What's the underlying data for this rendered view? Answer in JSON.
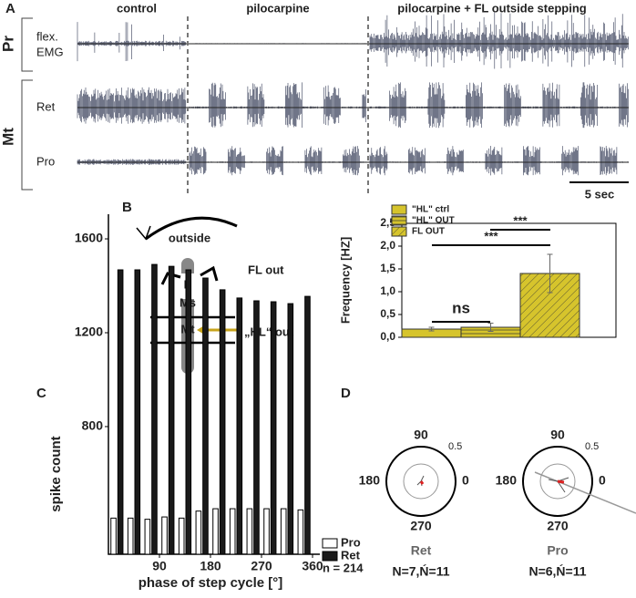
{
  "panel_labels": [
    "A",
    "B",
    "C",
    "D"
  ],
  "traces": {
    "conditions": [
      "control",
      "pilocarpine",
      "pilocarpine + FL outside stepping"
    ],
    "groups": [
      "Pr",
      "Mt"
    ],
    "channels": [
      "flex.",
      "EMG",
      "Ret",
      "Pro"
    ],
    "scale_bar": "5 sec"
  },
  "diagram": {
    "outside": "outside",
    "p": "P",
    "ms": "Ms",
    "mt": "Mt",
    "fl_out": "FL out",
    "hl_out": "„HL“ out"
  },
  "polar": {
    "angle_labels": [
      "90",
      "180",
      "0",
      "270"
    ],
    "radius_label": "0.5",
    "plots": [
      {
        "name": "Ret",
        "n": "N=7,Ń=11"
      },
      {
        "name": "Pro",
        "n": "N=6,Ń=11"
      }
    ]
  },
  "chart_data": [
    {
      "type": "bar",
      "ylabel": "Frequency [HZ]",
      "series": [
        {
          "name": "\"HL\" ctrl",
          "color": "#d6c42c",
          "hatch": "none",
          "values": [
            0.18
          ],
          "errors": [
            0.04
          ]
        },
        {
          "name": "\"HL\" OUT",
          "color": "#d6c42c",
          "hatch": "horizontal",
          "values": [
            0.22
          ],
          "errors": [
            0.09
          ]
        },
        {
          "name": "FL OUT",
          "color": "#d6c42c",
          "hatch": "diagonal",
          "values": [
            1.4
          ],
          "errors": [
            0.42
          ]
        }
      ],
      "annotations": [
        "ns",
        "***",
        "***"
      ],
      "ylim": [
        0,
        2.5
      ],
      "yticks": [
        {
          "value": 0,
          "label": "0,0"
        },
        {
          "value": 0.5,
          "label": "0,5"
        },
        {
          "value": 1,
          "label": "1,0"
        },
        {
          "value": 1.5,
          "label": "1,5"
        },
        {
          "value": 2,
          "label": "2,0"
        },
        {
          "value": 2.5,
          "label": "2,5"
        }
      ]
    },
    {
      "type": "grouped-bar",
      "xlabel": "phase of step cycle [°]",
      "ylabel": "spike count",
      "note": "n = 214",
      "x": [
        15,
        45,
        75,
        105,
        135,
        165,
        195,
        225,
        255,
        285,
        315,
        345
      ],
      "series": [
        {
          "name": "Pro",
          "color": "#ffffff",
          "values": [
            410,
            410,
            405,
            415,
            410,
            440,
            450,
            450,
            450,
            450,
            450,
            445
          ]
        },
        {
          "name": "Ret",
          "color": "#1a1a1a",
          "values": [
            1468,
            1468,
            1491,
            1483,
            1468,
            1433,
            1383,
            1348,
            1336,
            1332,
            1324,
            1355
          ]
        }
      ],
      "xlim": [
        0,
        360
      ],
      "xticks": [
        90,
        180,
        270,
        360
      ],
      "ylim": [
        256,
        1705
      ],
      "yticks": [
        800,
        1200,
        1600
      ]
    }
  ]
}
